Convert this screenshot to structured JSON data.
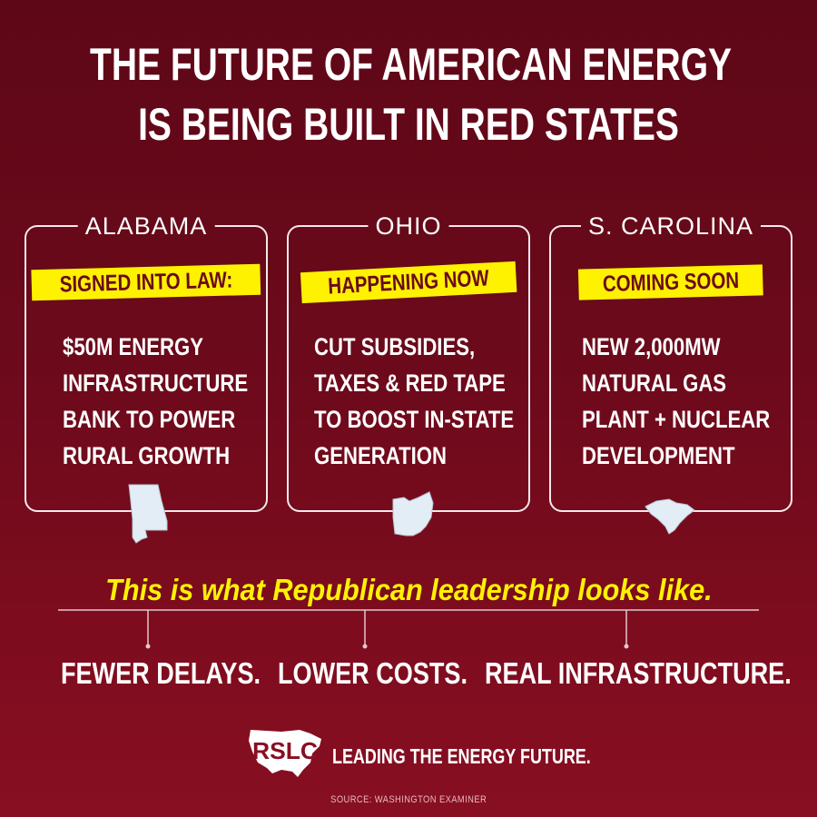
{
  "title": {
    "line1": "THE FUTURE OF AMERICAN ENERGY",
    "line2": "IS BEING BUILT IN RED STATES"
  },
  "cards": [
    {
      "state": "ALABAMA",
      "status": "SIGNED INTO LAW:",
      "lines": [
        "$50M ENERGY",
        "INFRASTRUCTURE",
        "BANK TO POWER",
        "RURAL GROWTH"
      ],
      "icon": "alabama-map-icon"
    },
    {
      "state": "OHIO",
      "status": "HAPPENING NOW",
      "lines": [
        "CUT SUBSIDIES,",
        "TAXES & RED TAPE",
        "TO BOOST IN-STATE",
        "GENERATION"
      ],
      "icon": "ohio-map-icon"
    },
    {
      "state": "S. CAROLINA",
      "status": "COMING SOON",
      "lines": [
        "NEW 2,000MW",
        "NATURAL GAS",
        "PLANT + NUCLEAR",
        "DEVELOPMENT"
      ],
      "icon": "south-carolina-map-icon"
    }
  ],
  "tagline": "This is what Republican leadership looks like.",
  "benefits": [
    "FEWER DELAYS.",
    "LOWER COSTS.",
    "REAL INFRASTRUCTURE."
  ],
  "footer": {
    "logo_text": "RSLC",
    "text": "LEADING THE ENERGY FUTURE.",
    "source": "SOURCE: WASHINGTON EXAMINER"
  },
  "colors": {
    "background": "#6c0a1b",
    "accent_yellow": "#fff200",
    "tag_text": "#6b0a1a",
    "icon_fill": "#e3edf6"
  }
}
